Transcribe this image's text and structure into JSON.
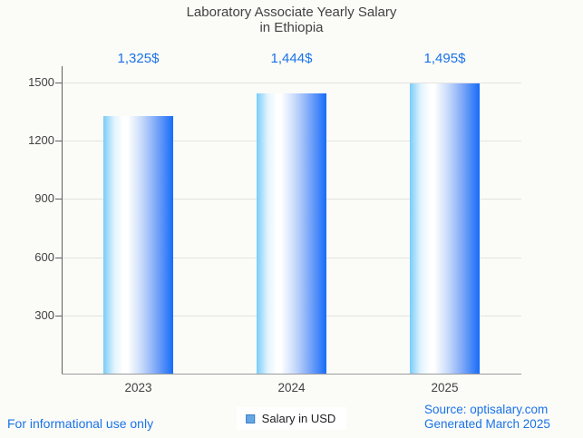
{
  "title": {
    "line1": "Laboratory Associate Yearly Salary",
    "line2": "in Ethiopia"
  },
  "chart_data": {
    "type": "bar",
    "title": "Laboratory Associate Yearly Salary in Ethiopia",
    "categories": [
      "2023",
      "2024",
      "2025"
    ],
    "series": [
      {
        "name": "Salary in USD",
        "values": [
          1325,
          1444,
          1495
        ]
      }
    ],
    "value_labels": [
      "1,325$",
      "1,444$",
      "1,495$"
    ],
    "xlabel": "",
    "ylabel": "",
    "ylim": [
      0,
      1600
    ],
    "yticks": [
      300,
      600,
      900,
      1200,
      1500
    ],
    "grid": true,
    "legend_position": "bottom-center"
  },
  "legend": {
    "label": "Salary in USD",
    "swatch_fill": "#64a7e3",
    "swatch_border": "#3e7cc7"
  },
  "footer": {
    "disclaimer": "For informational use only",
    "source_line1": "Source: optisalary.com",
    "source_line2": "Generated March 2025"
  },
  "colors": {
    "accent_blue": "#1a73e8",
    "bar_gradient_left": "#79ccf8",
    "bar_gradient_mid": "#ffffff",
    "bar_gradient_right": "#176cf9",
    "gridline": "#e3e3e1",
    "axis": "#616161",
    "baseline": "#9b9b9b",
    "text": "#424242",
    "background": "#fbfbf8"
  }
}
